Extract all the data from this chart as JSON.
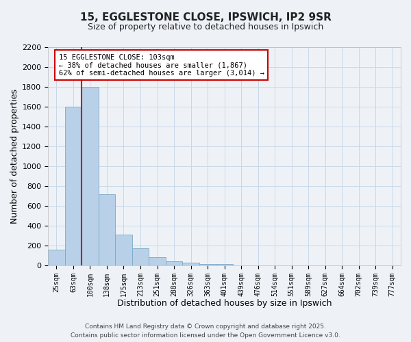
{
  "title": "15, EGGLESTONE CLOSE, IPSWICH, IP2 9SR",
  "subtitle": "Size of property relative to detached houses in Ipswich",
  "bar_labels": [
    "25sqm",
    "63sqm",
    "100sqm",
    "138sqm",
    "175sqm",
    "213sqm",
    "251sqm",
    "288sqm",
    "326sqm",
    "363sqm",
    "401sqm",
    "439sqm",
    "476sqm",
    "514sqm",
    "551sqm",
    "589sqm",
    "627sqm",
    "664sqm",
    "702sqm",
    "739sqm",
    "777sqm"
  ],
  "bar_values": [
    160,
    1600,
    1800,
    720,
    310,
    170,
    80,
    40,
    25,
    15,
    10,
    0,
    0,
    0,
    0,
    0,
    0,
    0,
    0,
    0,
    0
  ],
  "bar_color": "#b8d0e8",
  "bar_edge_color": "#7aaac8",
  "grid_color": "#c8d8e8",
  "background_color": "#eef2f7",
  "vline_color": "#cc0000",
  "annotation_title": "15 EGGLESTONE CLOSE: 103sqm",
  "annotation_line1": "← 38% of detached houses are smaller (1,867)",
  "annotation_line2": "62% of semi-detached houses are larger (3,014) →",
  "annotation_box_facecolor": "#ffffff",
  "annotation_box_edgecolor": "#cc0000",
  "xlabel": "Distribution of detached houses by size in Ipswich",
  "ylabel": "Number of detached properties",
  "ylim": [
    0,
    2200
  ],
  "yticks": [
    0,
    200,
    400,
    600,
    800,
    1000,
    1200,
    1400,
    1600,
    1800,
    2000,
    2200
  ],
  "footnote1": "Contains HM Land Registry data © Crown copyright and database right 2025.",
  "footnote2": "Contains public sector information licensed under the Open Government Licence v3.0."
}
